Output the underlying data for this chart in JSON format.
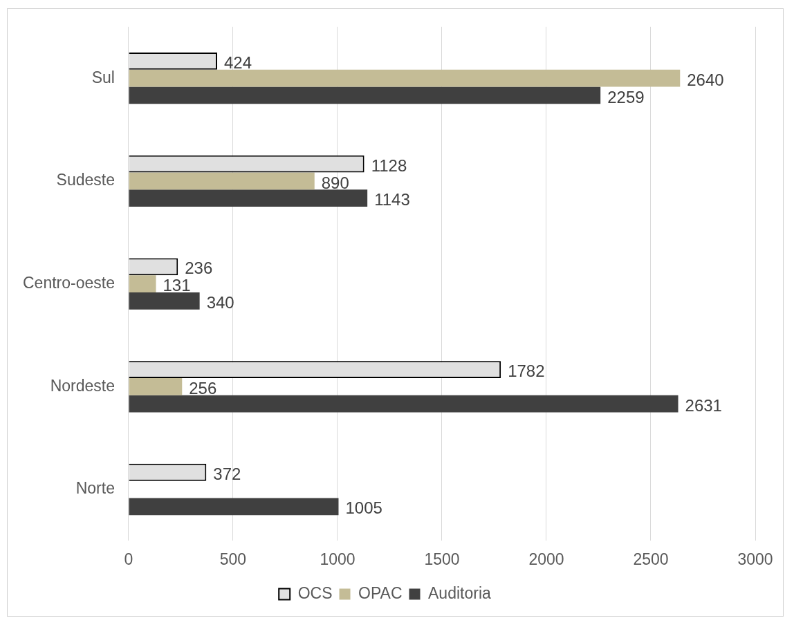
{
  "chart_data": {
    "type": "bar",
    "orientation": "horizontal",
    "categories": [
      "Sul",
      "Sudeste",
      "Centro-oeste",
      "Nordeste",
      "Norte"
    ],
    "series": [
      {
        "name": "OCS",
        "color": "#e0e0e0",
        "values": [
          424,
          1128,
          236,
          1782,
          372
        ]
      },
      {
        "name": "OPAC",
        "color": "#c4bc96",
        "values": [
          2640,
          890,
          131,
          256,
          null
        ]
      },
      {
        "name": "Auditoria",
        "color": "#404040",
        "values": [
          2259,
          1143,
          340,
          2631,
          1005
        ]
      }
    ],
    "xlim": [
      0,
      3000
    ],
    "xticks": [
      0,
      500,
      1000,
      1500,
      2000,
      2500,
      3000
    ],
    "grid": "x",
    "legend": "bottom",
    "data_labels": true
  }
}
